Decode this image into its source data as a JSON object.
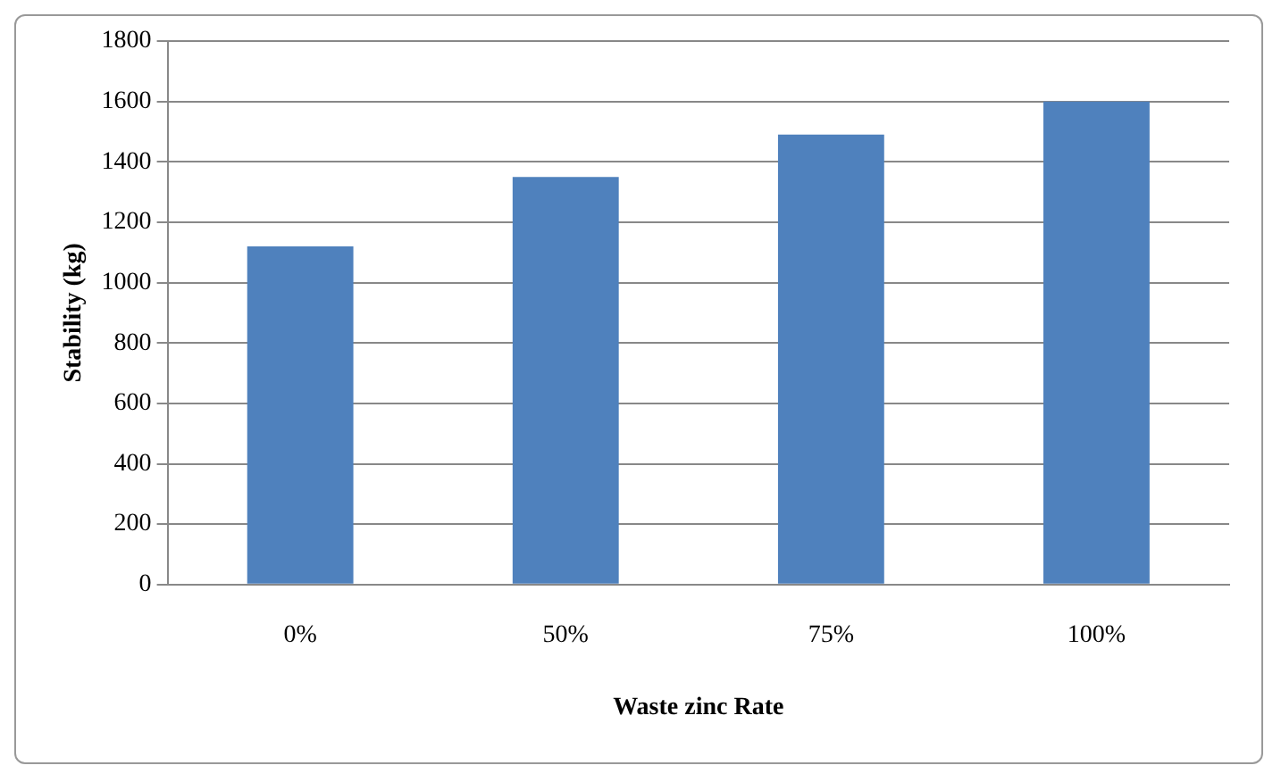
{
  "chart_data": {
    "type": "bar",
    "xlabel": "Waste zinc Rate",
    "ylabel": "Stability (kg)",
    "categories": [
      "0%",
      "50%",
      "75%",
      "100%"
    ],
    "values": [
      1120,
      1350,
      1490,
      1600
    ],
    "color": "#4f81bd",
    "ylim": [
      0,
      1800
    ],
    "yticks": [
      0,
      200,
      400,
      600,
      800,
      1000,
      1200,
      1400,
      1600,
      1800
    ],
    "grid": "y",
    "legend": false
  }
}
